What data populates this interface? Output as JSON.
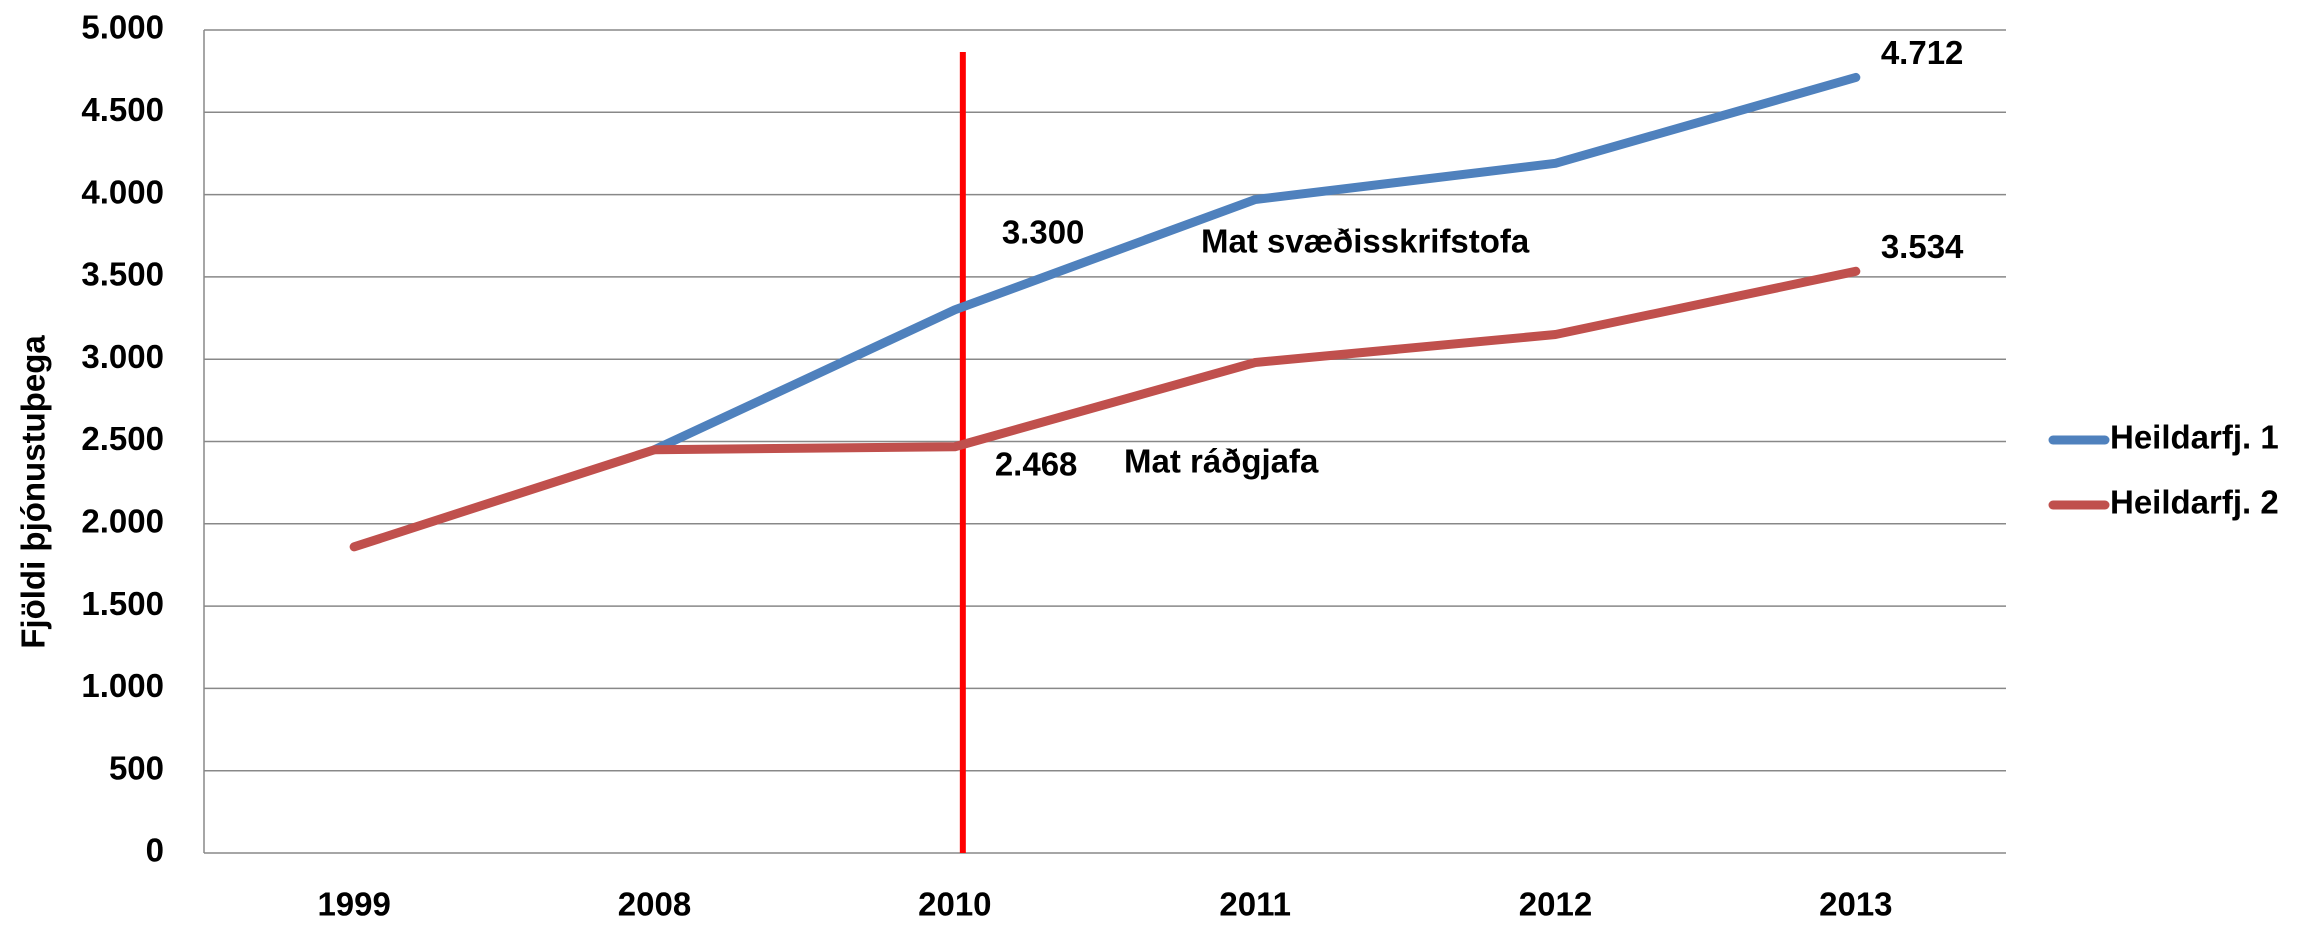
{
  "chart_data": {
    "type": "line",
    "y_label": "Fjöldi þjónustuþega",
    "categories": [
      "1999",
      "2008",
      "2010",
      "2011",
      "2012",
      "2013"
    ],
    "series": [
      {
        "name": "Heildarfj. 1",
        "color": "#4f81bd",
        "values": [
          null,
          2450,
          3300,
          3970,
          4190,
          4712
        ],
        "value_labels": [
          null,
          null,
          "3.300",
          null,
          null,
          "4.712"
        ]
      },
      {
        "name": "Heildarfj. 2",
        "color": "#c0504d",
        "values": [
          1860,
          2450,
          2468,
          2980,
          3150,
          3534
        ],
        "value_labels": [
          null,
          null,
          "2.468",
          null,
          null,
          "3.534"
        ]
      }
    ],
    "annotations": [
      "Mat svæðisskrifstofa",
      "Mat ráðgjafa"
    ],
    "marker_line": {
      "x": "2010",
      "color": "#ff0000"
    },
    "ylim": [
      0,
      5000
    ],
    "yticks": [
      0,
      500,
      {
        "value": 1000,
        "label": "1.000"
      },
      {
        "value": 1500,
        "label": "1.500"
      },
      {
        "value": 2000,
        "label": "2.000"
      },
      {
        "value": 2500,
        "label": "2.500"
      },
      {
        "value": 3000,
        "label": "3.000"
      },
      {
        "value": 3500,
        "label": "3.500"
      },
      {
        "value": 4000,
        "label": "4.000"
      },
      {
        "value": 4500,
        "label": "4.500"
      },
      {
        "value": 5000,
        "label": "5.000"
      }
    ],
    "grid": true,
    "legend": "right"
  }
}
